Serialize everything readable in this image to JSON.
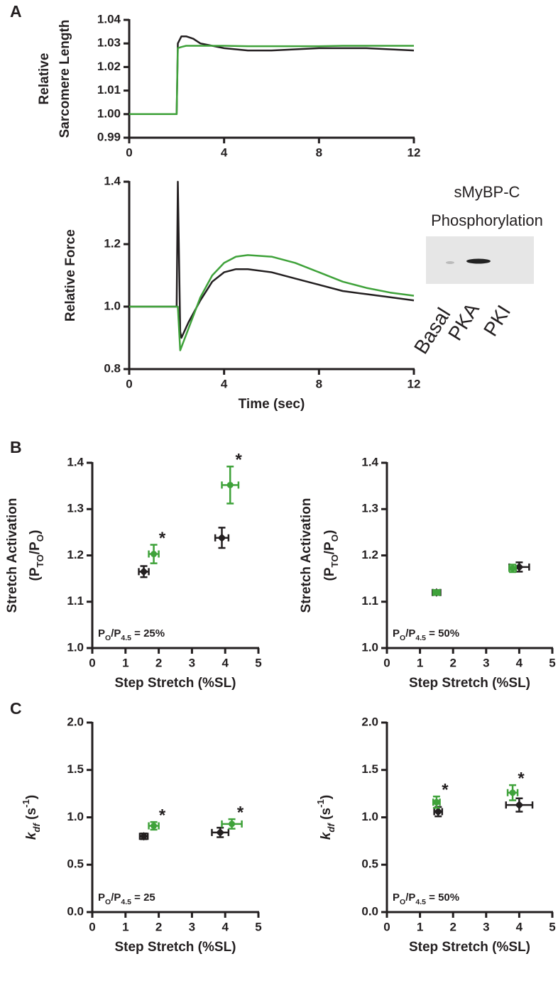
{
  "panel_labels": [
    "A",
    "B",
    "C"
  ],
  "blot": {
    "title": [
      "sMyBP-C",
      "Phosphorylation"
    ],
    "lanes": [
      "Basal",
      "PKA",
      "PKI"
    ]
  },
  "chart_data": [
    {
      "type": "line",
      "ylabel": [
        "Relative",
        "Sarcomere Length"
      ],
      "x": [
        0,
        1,
        2,
        2.05,
        2.2,
        2.4,
        2.7,
        3,
        3.5,
        4,
        5,
        6,
        7,
        8,
        9,
        10,
        11,
        12
      ],
      "series": [
        {
          "color": "#231f20",
          "values": [
            1,
            1,
            1,
            1.03,
            1.033,
            1.033,
            1.032,
            1.03,
            1.029,
            1.028,
            1.027,
            1.027,
            1.0275,
            1.028,
            1.028,
            1.028,
            1.0275,
            1.027
          ]
        },
        {
          "color": "#3fa23a",
          "values": [
            1,
            1,
            1,
            1.028,
            1.0285,
            1.029,
            1.029,
            1.029,
            1.029,
            1.029,
            1.0288,
            1.0288,
            1.0288,
            1.0288,
            1.029,
            1.029,
            1.029,
            1.029
          ]
        }
      ],
      "xlim": [
        0,
        12
      ],
      "xticks": [
        0,
        4,
        8,
        12
      ],
      "ylim": [
        0.99,
        1.04
      ],
      "yticks": [
        0.99,
        {
          "value": 1,
          "label": "1.00"
        },
        1.01,
        1.02,
        1.03,
        1.04
      ]
    },
    {
      "type": "line",
      "xlabel": "Time (sec)",
      "ylabel": [
        "Relative Force"
      ],
      "x": [
        0,
        1,
        2,
        2.05,
        2.15,
        2.2,
        2.5,
        3,
        3.5,
        4,
        4.5,
        5,
        6,
        7,
        8,
        9,
        10,
        11,
        12
      ],
      "series": [
        {
          "color": "#231f20",
          "values": [
            1,
            1,
            1,
            1.4,
            0.92,
            0.9,
            0.95,
            1.02,
            1.08,
            1.11,
            1.12,
            1.12,
            1.11,
            1.09,
            1.07,
            1.05,
            1.04,
            1.03,
            1.02
          ]
        },
        {
          "color": "#3fa23a",
          "values": [
            1,
            1,
            1,
            1,
            0.86,
            0.87,
            0.93,
            1.03,
            1.1,
            1.14,
            1.16,
            1.165,
            1.16,
            1.14,
            1.11,
            1.08,
            1.06,
            1.045,
            1.035
          ]
        }
      ],
      "xlim": [
        0,
        12
      ],
      "xticks": [
        0,
        4,
        8,
        12
      ],
      "ylim": [
        0.8,
        1.4
      ],
      "yticks": [
        0.8,
        {
          "value": 1,
          "label": "1.0"
        },
        1.2,
        1.4
      ]
    },
    {
      "type": "scatter",
      "xlabel": "Step Stretch (%SL)",
      "ylabel": [
        "Stretch Activation",
        [
          "(P",
          "TO",
          "/P",
          "O",
          ")"
        ]
      ],
      "ylabel_styles": [
        "",
        "sub",
        "",
        "sub",
        ""
      ],
      "note": [
        "P",
        "O",
        "/P",
        "4.5",
        " = 25%"
      ],
      "note_styles": [
        "",
        "sub",
        "",
        "sub",
        ""
      ],
      "series": [
        {
          "color": "#231f20",
          "marker": "diamond",
          "x": [
            1.55,
            3.9
          ],
          "values": [
            1.165,
            1.238
          ],
          "xerr": [
            0.15,
            0.2
          ],
          "yerr": [
            0.012,
            0.022
          ]
        },
        {
          "color": "#3fa23a",
          "marker": "circle",
          "x": [
            1.85,
            4.15
          ],
          "values": [
            1.203,
            1.352
          ],
          "xerr": [
            0.15,
            0.25
          ],
          "yerr": [
            0.02,
            0.04
          ],
          "significance": [
            "*",
            "*"
          ]
        }
      ],
      "xlim": [
        0,
        5
      ],
      "xticks": [
        0,
        1,
        2,
        3,
        4,
        5
      ],
      "ylim": [
        1,
        1.4
      ],
      "yticks": [
        {
          "value": 1,
          "label": "1.0"
        },
        1.1,
        1.2,
        1.3,
        1.4
      ]
    },
    {
      "type": "scatter",
      "xlabel": "Step Stretch (%SL)",
      "ylabel": [
        "Stretch Activation",
        [
          "(P",
          "TO",
          "/P",
          "O",
          ")"
        ]
      ],
      "ylabel_styles": [
        "",
        "sub",
        "",
        "sub",
        ""
      ],
      "note": [
        "P",
        "O",
        "/P",
        "4.5",
        " = 50%"
      ],
      "note_styles": [
        "",
        "sub",
        "",
        "sub",
        ""
      ],
      "series": [
        {
          "color": "#231f20",
          "marker": "diamond",
          "x": [
            1.5,
            4.0
          ],
          "values": [
            1.12,
            1.175
          ],
          "xerr": [
            0.12,
            0.3
          ],
          "yerr": [
            0.005,
            0.01
          ]
        },
        {
          "color": "#3fa23a",
          "marker": "circle",
          "x": [
            1.5,
            3.8
          ],
          "values": [
            1.12,
            1.172
          ],
          "xerr": [
            0.1,
            0.1
          ],
          "yerr": [
            0.005,
            0.008
          ]
        }
      ],
      "xlim": [
        0,
        5
      ],
      "xticks": [
        0,
        1,
        2,
        3,
        4,
        5
      ],
      "ylim": [
        1,
        1.4
      ],
      "yticks": [
        {
          "value": 1,
          "label": "1.0"
        },
        1.1,
        1.2,
        1.3,
        1.4
      ]
    },
    {
      "type": "scatter",
      "xlabel": "Step Stretch (%SL)",
      "ylabel": [
        [
          "k",
          "df",
          " (s",
          "-1",
          ")"
        ]
      ],
      "ylabel_styles": [
        "it",
        "itsub",
        "",
        "sup",
        ""
      ],
      "note": [
        "P",
        "O",
        "/P",
        "4.5",
        " = 25"
      ],
      "note_styles": [
        "",
        "sub",
        "",
        "sub",
        ""
      ],
      "series": [
        {
          "color": "#231f20",
          "marker": "diamond",
          "x": [
            1.55,
            3.85
          ],
          "values": [
            0.8,
            0.84
          ],
          "xerr": [
            0.12,
            0.25
          ],
          "yerr": [
            0.03,
            0.05
          ]
        },
        {
          "color": "#3fa23a",
          "marker": "circle",
          "x": [
            1.85,
            4.2
          ],
          "values": [
            0.91,
            0.93
          ],
          "xerr": [
            0.15,
            0.3
          ],
          "yerr": [
            0.04,
            0.05
          ],
          "significance": [
            "*",
            "*"
          ]
        }
      ],
      "xlim": [
        0,
        5
      ],
      "xticks": [
        0,
        1,
        2,
        3,
        4,
        5
      ],
      "ylim": [
        0,
        2
      ],
      "yticks": [
        {
          "value": 0,
          "label": "0.0"
        },
        0.5,
        {
          "value": 1,
          "label": "1.0"
        },
        1.5,
        {
          "value": 2,
          "label": "2.0"
        }
      ]
    },
    {
      "type": "scatter",
      "xlabel": "Step Stretch (%SL)",
      "ylabel": [
        [
          "k",
          "df",
          " (s",
          "-1",
          ")"
        ]
      ],
      "ylabel_styles": [
        "it",
        "itsub",
        "",
        "sup",
        ""
      ],
      "note": [
        "P",
        "O",
        "/P",
        "4.5",
        " = 50%"
      ],
      "note_styles": [
        "",
        "sub",
        "",
        "sub",
        ""
      ],
      "series": [
        {
          "color": "#231f20",
          "marker": "diamond",
          "x": [
            1.55,
            4.0
          ],
          "values": [
            1.06,
            1.13
          ],
          "xerr": [
            0.12,
            0.4
          ],
          "yerr": [
            0.05,
            0.07
          ]
        },
        {
          "color": "#3fa23a",
          "marker": "circle",
          "x": [
            1.5,
            3.8
          ],
          "values": [
            1.16,
            1.26
          ],
          "xerr": [
            0.1,
            0.15
          ],
          "yerr": [
            0.06,
            0.08
          ],
          "significance": [
            "*",
            "*"
          ]
        }
      ],
      "xlim": [
        0,
        5
      ],
      "xticks": [
        0,
        1,
        2,
        3,
        4,
        5
      ],
      "ylim": [
        0,
        2
      ],
      "yticks": [
        {
          "value": 0,
          "label": "0.0"
        },
        0.5,
        {
          "value": 1,
          "label": "1.0"
        },
        1.5,
        {
          "value": 2,
          "label": "2.0"
        }
      ]
    }
  ]
}
